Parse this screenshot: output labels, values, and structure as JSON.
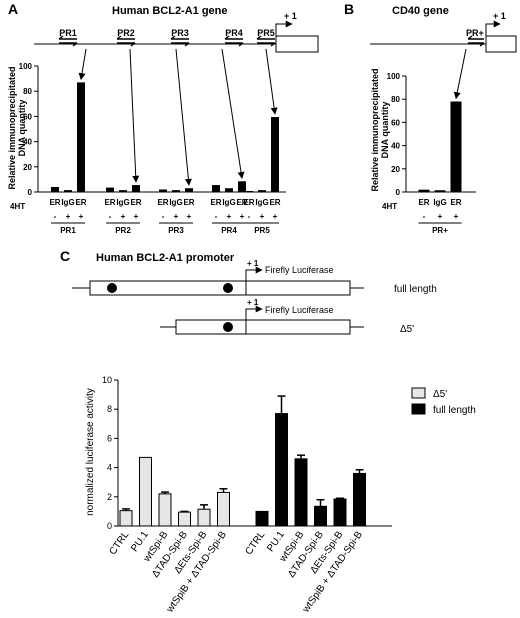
{
  "panels": {
    "a": {
      "letter": "A",
      "title": "Human BCL2-A1 gene",
      "tss_label": "+ 1",
      "region_labels": [
        "PR1",
        "PR2",
        "PR3",
        "PR4",
        "PR5"
      ]
    },
    "b": {
      "letter": "B",
      "title": "CD40 gene",
      "tss_label": "+ 1",
      "region_label": "PR+"
    },
    "c": {
      "letter": "C",
      "title": "Human BCL2-A1 promoter",
      "constructs": [
        {
          "reporter": "Firefly Luciferase",
          "tss": "+ 1",
          "name": "full length"
        },
        {
          "reporter": "Firefly Luciferase",
          "tss": "+ 1",
          "name": "Δ5'"
        }
      ]
    }
  },
  "treatment_label": "4HT",
  "chart_data": [
    {
      "type": "bar",
      "panel": "A",
      "ylabel": "Relative immunoprecipitated DNA quantity",
      "ylim": [
        0,
        100
      ],
      "yticks": [
        0,
        20,
        40,
        60,
        80,
        100
      ],
      "groups": [
        {
          "name": "PR1",
          "categories": [
            "ER",
            "IgG",
            "ER"
          ],
          "treatment": [
            "-",
            "+",
            "+"
          ],
          "values": [
            4,
            1.5,
            87
          ]
        },
        {
          "name": "PR2",
          "categories": [
            "ER",
            "IgG",
            "ER"
          ],
          "treatment": [
            "-",
            "+",
            "+"
          ],
          "values": [
            3.5,
            1.5,
            5.5
          ]
        },
        {
          "name": "PR3",
          "categories": [
            "ER",
            "IgG",
            "ER"
          ],
          "treatment": [
            "-",
            "+",
            "+"
          ],
          "values": [
            2,
            1.5,
            3
          ]
        },
        {
          "name": "PR4",
          "categories": [
            "ER",
            "IgG",
            "ER"
          ],
          "treatment": [
            "-",
            "+",
            "+"
          ],
          "values": [
            5.5,
            3,
            8.5
          ]
        },
        {
          "name": "PR5",
          "categories": [
            "ER",
            "IgG",
            "ER"
          ],
          "treatment": [
            "-",
            "+",
            "+"
          ],
          "values": [
            0.8,
            1.5,
            59.5
          ]
        }
      ]
    },
    {
      "type": "bar",
      "panel": "B",
      "ylabel": "Relative immunoprecipitated DNA quantity",
      "ylim": [
        0,
        100
      ],
      "yticks": [
        0,
        20,
        40,
        60,
        80,
        100
      ],
      "groups": [
        {
          "name": "PR+",
          "categories": [
            "ER",
            "IgG",
            "ER"
          ],
          "treatment": [
            "-",
            "+",
            "+"
          ],
          "values": [
            2,
            1.5,
            78
          ]
        }
      ]
    },
    {
      "type": "bar",
      "panel": "C",
      "ylabel": "normalized luciferase activity",
      "ylim": [
        0,
        10
      ],
      "yticks": [
        0,
        2,
        4,
        6,
        8,
        10
      ],
      "categories": [
        "CTRL",
        "PU.1",
        "wtSpi-B",
        "ΔTAD-Spi-B",
        "ΔEts-Spi-B",
        "wtSpiB + ΔTAD-Spi-B"
      ],
      "series": [
        {
          "name": "Δ5'",
          "color": "#e6e6e6",
          "values": [
            1.05,
            4.7,
            2.2,
            0.95,
            1.15,
            2.3
          ],
          "errors": [
            0.12,
            0,
            0.12,
            0.05,
            0.3,
            0.25
          ]
        },
        {
          "name": "full length",
          "color": "#000000",
          "values": [
            1.0,
            7.7,
            4.6,
            1.35,
            1.85,
            3.6
          ],
          "errors": [
            0,
            1.2,
            0.25,
            0.45,
            0.05,
            0.25
          ]
        }
      ],
      "legend": "top-right"
    }
  ]
}
